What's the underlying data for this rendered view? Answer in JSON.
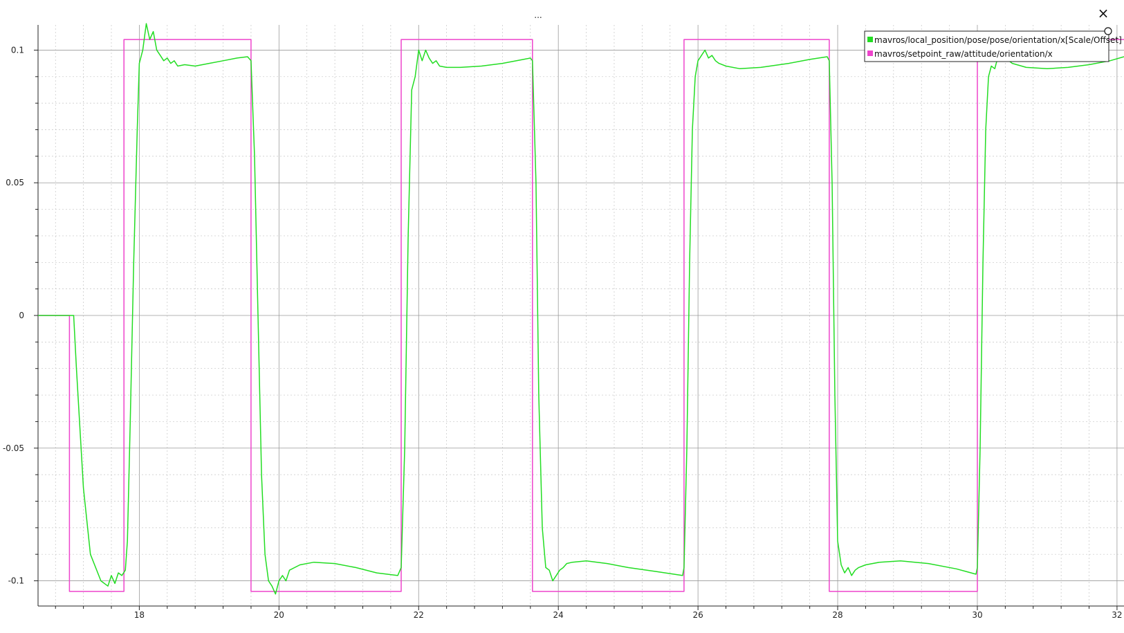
{
  "window": {
    "title": "...",
    "close_glyph": "×"
  },
  "legend": {
    "position": "top-right",
    "entries": [
      {
        "label": "mavros/local_position/pose/pose/orientation/x[Scale/Offset]",
        "color": "#22dd22"
      },
      {
        "label": "mavros/setpoint_raw/attitude/orientation/x",
        "color": "#ee44cc"
      }
    ]
  },
  "chart_data": {
    "type": "line",
    "title": "",
    "xlabel": "",
    "ylabel": "",
    "xlim": [
      16.55,
      32.1
    ],
    "ylim": [
      -0.1095,
      0.1095
    ],
    "grid": true,
    "x_ticks": [
      18,
      20,
      22,
      24,
      26,
      28,
      30,
      32
    ],
    "y_ticks": [
      0.1,
      0.05,
      0,
      -0.05,
      -0.1
    ],
    "y_tick_labels": [
      "0.1",
      "0.05",
      "0",
      "-0.05",
      "-0.1"
    ],
    "series": [
      {
        "name": "mavros/setpoint_raw/attitude/orientation/x",
        "color": "#ee44cc",
        "x": [
          16.55,
          17.0,
          17.0,
          17.78,
          17.78,
          19.6,
          19.6,
          21.75,
          21.75,
          23.63,
          23.63,
          25.8,
          25.8,
          27.88,
          27.88,
          30.0,
          30.0,
          32.1
        ],
        "y": [
          0,
          0,
          -0.104,
          -0.104,
          0.104,
          0.104,
          -0.104,
          -0.104,
          0.104,
          0.104,
          -0.104,
          -0.104,
          0.104,
          0.104,
          -0.104,
          -0.104,
          0.104,
          0.104
        ]
      },
      {
        "name": "mavros/local_position/pose/pose/orientation/x[Scale/Offset]",
        "color": "#22dd22",
        "x": [
          16.55,
          17.0,
          17.03,
          17.06,
          17.1,
          17.2,
          17.3,
          17.45,
          17.55,
          17.6,
          17.65,
          17.7,
          17.75,
          17.8,
          17.83,
          17.87,
          17.92,
          17.97,
          18.0,
          18.05,
          18.1,
          18.15,
          18.2,
          18.25,
          18.3,
          18.35,
          18.4,
          18.45,
          18.5,
          18.55,
          18.65,
          18.8,
          19.0,
          19.2,
          19.4,
          19.55,
          19.6,
          19.65,
          19.7,
          19.75,
          19.8,
          19.85,
          19.9,
          19.95,
          20.0,
          20.05,
          20.1,
          20.15,
          20.3,
          20.5,
          20.8,
          21.1,
          21.4,
          21.7,
          21.75,
          21.8,
          21.85,
          21.9,
          21.95,
          22.0,
          22.05,
          22.1,
          22.15,
          22.2,
          22.25,
          22.3,
          22.4,
          22.6,
          22.9,
          23.2,
          23.5,
          23.6,
          23.63,
          23.68,
          23.72,
          23.77,
          23.82,
          23.87,
          23.92,
          23.97,
          24.02,
          24.07,
          24.12,
          24.2,
          24.4,
          24.7,
          25.0,
          25.4,
          25.78,
          25.8,
          25.84,
          25.88,
          25.92,
          25.96,
          26.0,
          26.05,
          26.1,
          26.15,
          26.2,
          26.25,
          26.3,
          26.4,
          26.6,
          26.9,
          27.3,
          27.6,
          27.85,
          27.88,
          27.92,
          27.96,
          28.0,
          28.05,
          28.1,
          28.15,
          28.2,
          28.25,
          28.3,
          28.4,
          28.6,
          28.9,
          29.3,
          29.7,
          29.98,
          30.0,
          30.04,
          30.08,
          30.12,
          30.16,
          30.2,
          30.25,
          30.3,
          30.35,
          30.4,
          30.5,
          30.7,
          31.0,
          31.3,
          31.6,
          31.9,
          32.1
        ],
        "y": [
          0,
          0,
          0,
          0.0,
          -0.02,
          -0.065,
          -0.09,
          -0.1,
          -0.102,
          -0.098,
          -0.101,
          -0.097,
          -0.098,
          -0.096,
          -0.085,
          -0.04,
          0.02,
          0.07,
          0.095,
          0.1,
          0.11,
          0.104,
          0.107,
          0.1,
          0.098,
          0.096,
          0.097,
          0.095,
          0.096,
          0.094,
          0.0945,
          0.094,
          0.095,
          0.096,
          0.097,
          0.0975,
          0.096,
          0.06,
          0.0,
          -0.06,
          -0.09,
          -0.1,
          -0.102,
          -0.105,
          -0.1,
          -0.098,
          -0.1,
          -0.096,
          -0.094,
          -0.093,
          -0.0935,
          -0.095,
          -0.097,
          -0.098,
          -0.095,
          -0.05,
          0.03,
          0.085,
          0.09,
          0.1,
          0.096,
          0.1,
          0.097,
          0.095,
          0.096,
          0.094,
          0.0935,
          0.0935,
          0.094,
          0.095,
          0.0965,
          0.097,
          0.096,
          0.05,
          -0.03,
          -0.08,
          -0.095,
          -0.096,
          -0.1,
          -0.098,
          -0.096,
          -0.095,
          -0.0935,
          -0.093,
          -0.0925,
          -0.0935,
          -0.095,
          -0.0965,
          -0.098,
          -0.095,
          -0.05,
          0.02,
          0.07,
          0.09,
          0.096,
          0.098,
          0.1,
          0.097,
          0.098,
          0.096,
          0.095,
          0.094,
          0.093,
          0.0935,
          0.095,
          0.0965,
          0.0975,
          0.096,
          0.05,
          -0.03,
          -0.085,
          -0.094,
          -0.097,
          -0.095,
          -0.098,
          -0.096,
          -0.095,
          -0.094,
          -0.093,
          -0.0925,
          -0.0935,
          -0.0955,
          -0.0975,
          -0.095,
          -0.05,
          0.02,
          0.07,
          0.09,
          0.094,
          0.093,
          0.098,
          0.096,
          0.097,
          0.095,
          0.0935,
          0.093,
          0.0935,
          0.0945,
          0.096,
          0.0975
        ]
      }
    ]
  }
}
